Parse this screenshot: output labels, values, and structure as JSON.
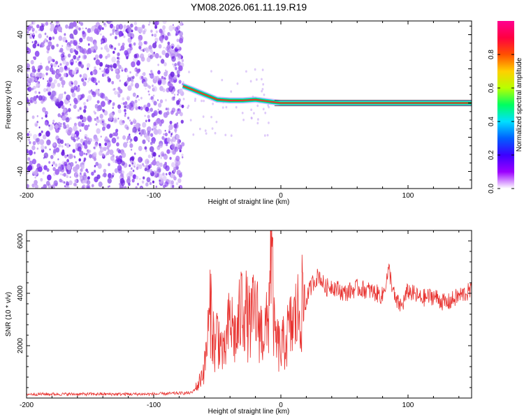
{
  "title": "YM08.2026.061.11.19.R19",
  "colors": {
    "snr_line": "#e8322f",
    "scatter_base": "#7b2ff0",
    "ridge_core": "#e8322f",
    "ridge_mid": "#00e05a",
    "ridge_outer": "#00d4e8",
    "background": "#ffffff",
    "frame": "#000000"
  },
  "chart_data": [
    {
      "type": "heatmap",
      "xlabel": "Height of straight line (km)",
      "ylabel": "Frequency (Hz)",
      "xlim": [
        -200,
        150
      ],
      "ylim": [
        -50,
        48
      ],
      "xticks": [
        -200,
        -100,
        0,
        100
      ],
      "xtick_labels": [
        "-200",
        "-100",
        "0",
        "100"
      ],
      "yticks": [
        -40,
        -20,
        0,
        20,
        40
      ],
      "ytick_labels": [
        "-40",
        "-20",
        "0",
        "20",
        "40"
      ],
      "grid": false,
      "description_of_content": "dense purple noise for x < -75 km; narrow ridge near 0 Hz for x > -75 km",
      "noise_region_x": [
        -200,
        -77
      ],
      "ridge": {
        "x": [
          -77,
          -70,
          -60,
          -50,
          -40,
          -30,
          -20,
          -10,
          0,
          20,
          50,
          100,
          150
        ],
        "y": [
          10,
          8,
          5,
          2,
          1.5,
          1.5,
          2,
          1,
          0,
          0,
          0,
          0,
          0
        ]
      },
      "colorbar": {
        "label": "Normalized spectral amplitude",
        "range": [
          0,
          1
        ],
        "ticks": [
          0.0,
          0.2,
          0.4,
          0.6,
          0.8
        ],
        "tick_labels": [
          "0.0",
          "0.2",
          "0.4",
          "0.6",
          "0.8"
        ],
        "colormap": [
          "#ffffff",
          "#9b00ff",
          "#3c00ff",
          "#0060ff",
          "#00e0ff",
          "#00ff60",
          "#b8ff00",
          "#ffd000",
          "#ff5000",
          "#ff0040",
          "#ff0090"
        ]
      }
    },
    {
      "type": "line",
      "xlabel": "Height of straight line (km)",
      "ylabel": "SNR (10 * v/v)",
      "xlim": [
        -200,
        150
      ],
      "ylim": [
        0,
        6400
      ],
      "xticks": [
        -200,
        -100,
        0,
        100
      ],
      "xtick_labels": [
        "-200",
        "-100",
        "0",
        "100"
      ],
      "yticks": [
        2000,
        4000,
        6000
      ],
      "ytick_labels": [
        "2000",
        "4000",
        "6000"
      ],
      "grid": false,
      "series": [
        {
          "x": [
            -200,
            -150,
            -100,
            -70,
            -65,
            -60,
            -55,
            -52,
            -50,
            -45,
            -40,
            -35,
            -30,
            -25,
            -20,
            -15,
            -10,
            -8,
            -5,
            0,
            5,
            10,
            15,
            20,
            25,
            30,
            35,
            40,
            50,
            60,
            70,
            80,
            85,
            90,
            95,
            100,
            110,
            120,
            130,
            140,
            150
          ],
          "y": [
            150,
            150,
            150,
            200,
            500,
            1200,
            3500,
            1800,
            2600,
            1500,
            3000,
            2200,
            3800,
            2800,
            3300,
            2500,
            2700,
            6300,
            2300,
            1800,
            2400,
            2900,
            3400,
            3800,
            4400,
            4700,
            4200,
            4300,
            4000,
            4200,
            4100,
            3900,
            4900,
            3700,
            3500,
            4100,
            3800,
            3900,
            3600,
            3900,
            4100
          ]
        }
      ]
    }
  ]
}
